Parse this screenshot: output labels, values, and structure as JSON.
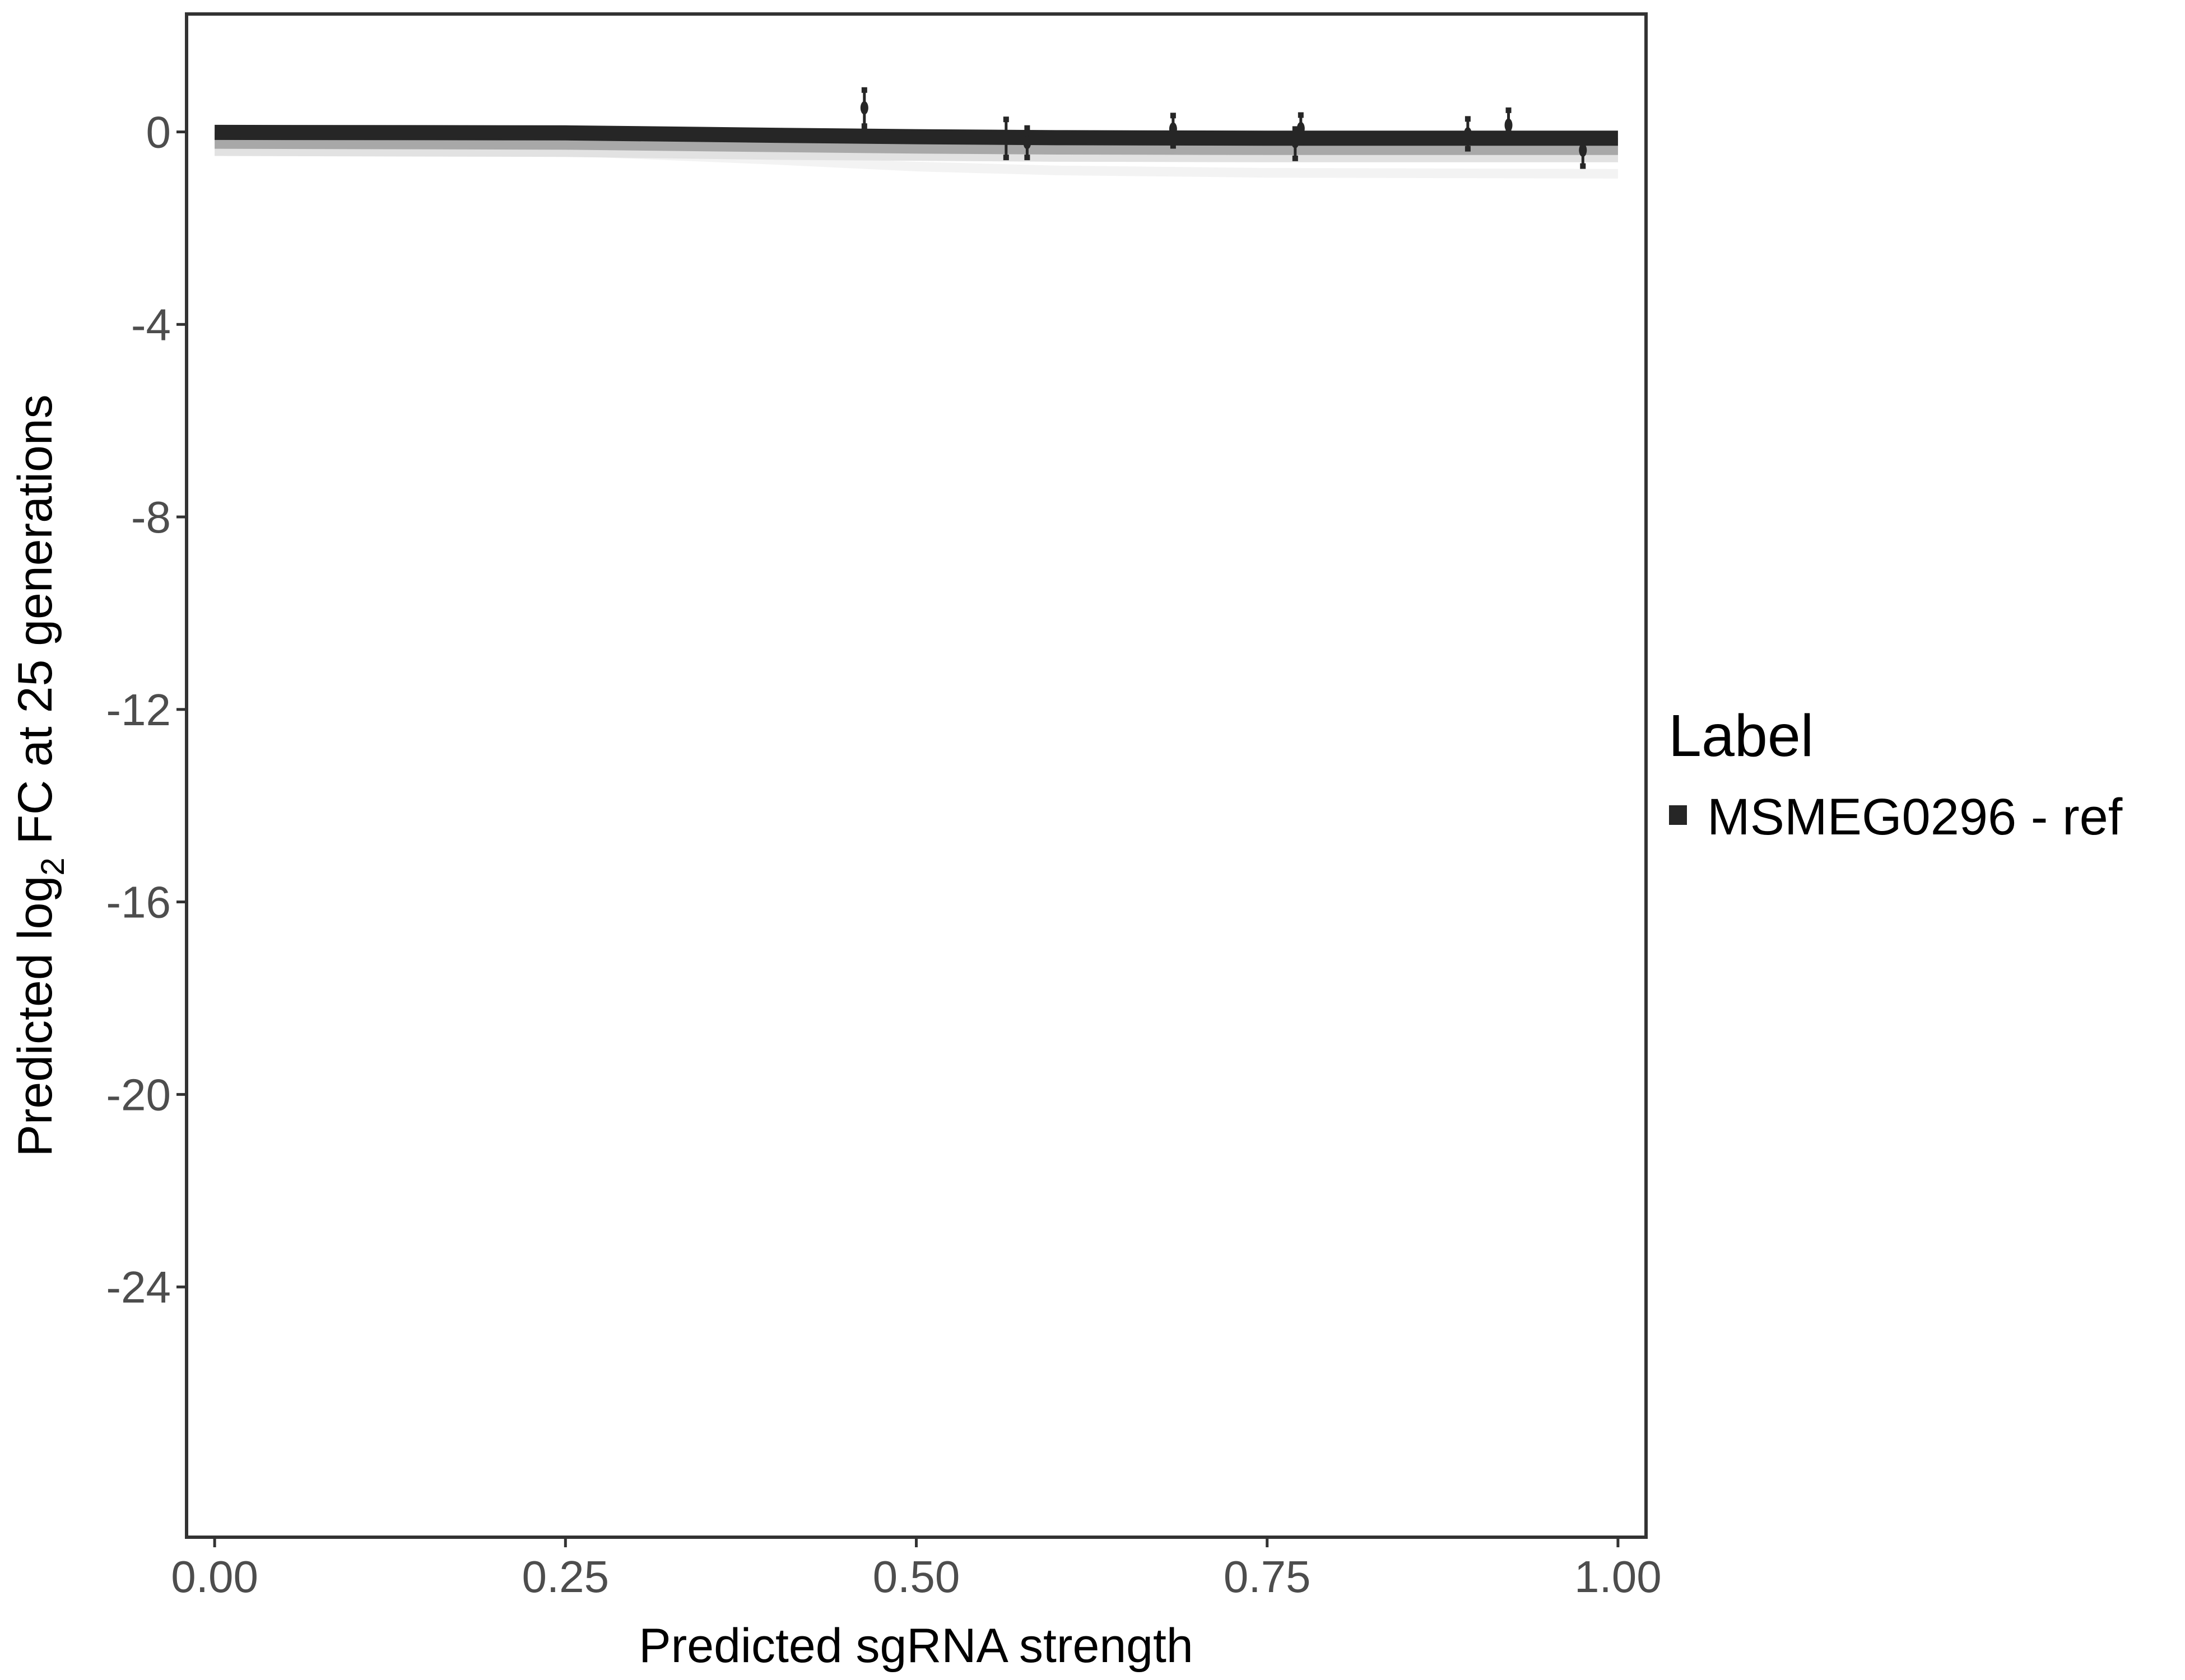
{
  "chart_data": {
    "type": "line",
    "title": "",
    "xlabel": "Predicted sgRNA strength",
    "ylabel_parts": {
      "pre": "Predicted  log",
      "sub": "2",
      "post": " FC at 25 generations"
    },
    "xlim": [
      -0.02,
      1.02
    ],
    "ylim": [
      -29.2,
      2.45
    ],
    "xticks": [
      0,
      0.25,
      0.5,
      0.75,
      1
    ],
    "xtick_labels": [
      "0.00",
      "0.25",
      "0.50",
      "0.75",
      "1.00"
    ],
    "yticks": [
      0,
      -4,
      -8,
      -12,
      -16,
      -20,
      -24
    ],
    "ytick_labels": [
      "0",
      "-4",
      "-8",
      "-12",
      "-16",
      "-20",
      "-24"
    ],
    "grid": false,
    "legend": {
      "title": "Label",
      "placement": "right",
      "entries": [
        "MSMEG0296 - ref"
      ]
    },
    "colors": {
      "line": "#262626",
      "points": "#262626",
      "panel_border": "#333333"
    },
    "fit_line": {
      "name": "MSMEG0296 - ref",
      "x": [
        0,
        0.25,
        0.4,
        0.5,
        0.6,
        0.75,
        1.0
      ],
      "y": [
        -0.01,
        -0.02,
        -0.07,
        -0.1,
        -0.12,
        -0.13,
        -0.13
      ]
    },
    "ribbons": [
      {
        "x": [
          0,
          0.25,
          0.4,
          0.5,
          0.6,
          0.75,
          1.0
        ],
        "upper": [
          -0.01,
          -0.02,
          -0.07,
          -0.1,
          -0.12,
          -0.13,
          -0.13
        ],
        "lower": [
          -0.35,
          -0.37,
          -0.42,
          -0.45,
          -0.47,
          -0.48,
          -0.48
        ],
        "color": "#a8a8a8"
      },
      {
        "x": [
          0,
          0.25,
          0.4,
          0.5,
          0.6,
          0.75,
          1.0
        ],
        "upper": [
          -0.01,
          -0.02,
          -0.07,
          -0.1,
          -0.12,
          -0.13,
          -0.13
        ],
        "lower": [
          -0.5,
          -0.52,
          -0.58,
          -0.6,
          -0.62,
          -0.63,
          -0.63
        ],
        "color": "#e2e2e2"
      },
      {
        "x": [
          0,
          0.25,
          0.4,
          0.5,
          0.6,
          0.75,
          1.0
        ],
        "upper": [
          -0.3,
          -0.35,
          -0.5,
          -0.62,
          -0.7,
          -0.75,
          -0.77
        ],
        "lower": [
          -0.45,
          -0.5,
          -0.68,
          -0.82,
          -0.9,
          -0.95,
          -0.97
        ],
        "color": "#f3f3f3"
      }
    ],
    "points": [
      {
        "x": 0.463,
        "y": 0.5,
        "ymin": 0.12,
        "ymax": 0.87
      },
      {
        "x": 0.564,
        "y": -0.13,
        "ymin": -0.53,
        "ymax": 0.26
      },
      {
        "x": 0.579,
        "y": -0.22,
        "ymin": -0.53,
        "ymax": 0.08
      },
      {
        "x": 0.683,
        "y": 0.06,
        "ymin": -0.29,
        "ymax": 0.34
      },
      {
        "x": 0.77,
        "y": -0.2,
        "ymin": -0.55,
        "ymax": 0.06
      },
      {
        "x": 0.774,
        "y": 0.07,
        "ymin": -0.2,
        "ymax": 0.35
      },
      {
        "x": 0.893,
        "y": -0.04,
        "ymin": -0.35,
        "ymax": 0.27
      },
      {
        "x": 0.922,
        "y": 0.14,
        "ymin": 0.03,
        "ymax": 0.45
      },
      {
        "x": 0.975,
        "y": -0.38,
        "ymin": -0.71,
        "ymax": -0.23
      }
    ]
  }
}
